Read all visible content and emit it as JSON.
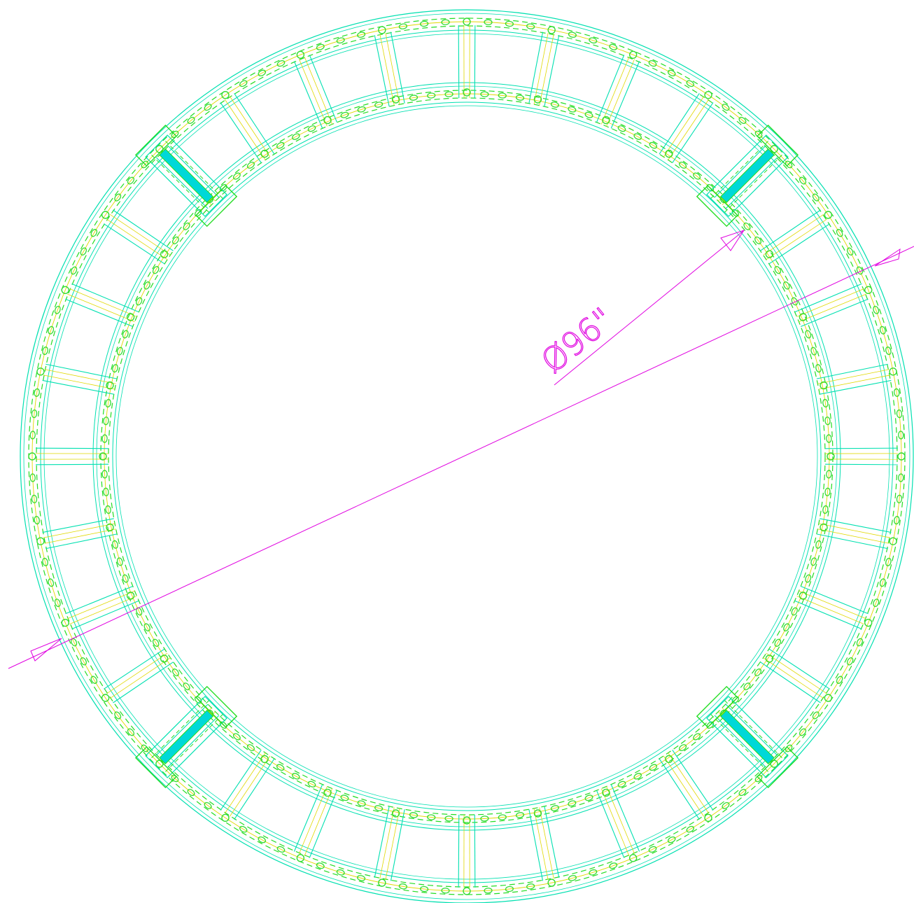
{
  "drawing": {
    "dimension_label": "Ø96\"",
    "colors": {
      "background": "#ffffff",
      "frame_outline": "#00e0b0",
      "hidden_line": "#22dd22",
      "centerline": "#e0d800",
      "bolt_hole": "#33dd33",
      "stiffener_fill": "#00d8d8",
      "dimension": "#e000e0"
    },
    "ring": {
      "segments": 32,
      "bolt_holes_per_segment": 3,
      "stiffener_positions_deg": [
        45,
        135,
        225,
        315
      ]
    }
  }
}
